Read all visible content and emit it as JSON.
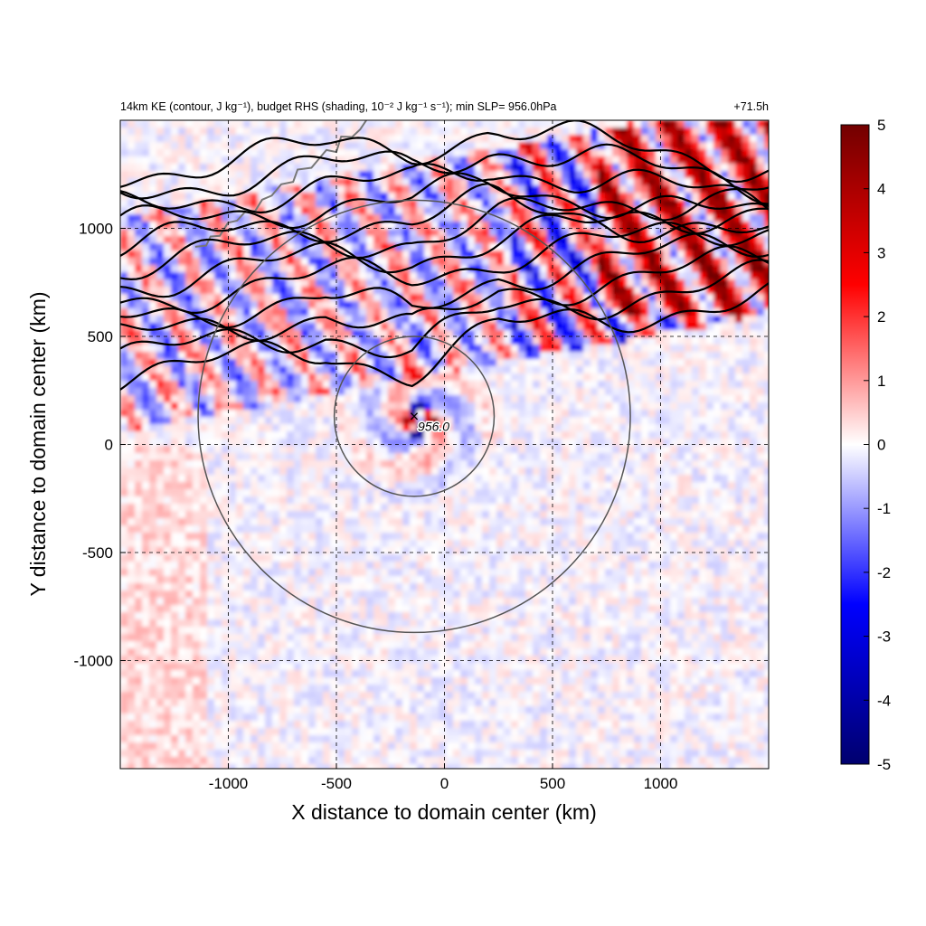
{
  "chart_data": {
    "type": "heatmap",
    "title_left": "14km KE (contour, J kg⁻¹), budget RHS (shading, 10⁻² J kg⁻¹ s⁻¹); min SLP= 956.0hPa",
    "title_right": "+71.5h",
    "xlabel": "X distance to domain center (km)",
    "ylabel": "Y distance to domain center (km)",
    "xlim": [
      -1500,
      1500
    ],
    "ylim": [
      -1500,
      1500
    ],
    "x_ticks": [
      -1000,
      -500,
      0,
      500,
      1000
    ],
    "y_ticks": [
      -1000,
      -500,
      0,
      500,
      1000
    ],
    "grid": "dashed",
    "colorbar": {
      "min": -5,
      "max": 5,
      "ticks": [
        -5,
        -4,
        -3,
        -2,
        -1,
        0,
        1,
        2,
        3,
        4,
        5
      ],
      "colors": [
        "#00006e",
        "#0000ff",
        "#ffffff",
        "#ff0000",
        "#720000"
      ],
      "placement": "right"
    },
    "storm": {
      "center": [
        -140,
        130
      ],
      "label": "956.0",
      "rings_radius_km": [
        370,
        1000
      ]
    }
  }
}
